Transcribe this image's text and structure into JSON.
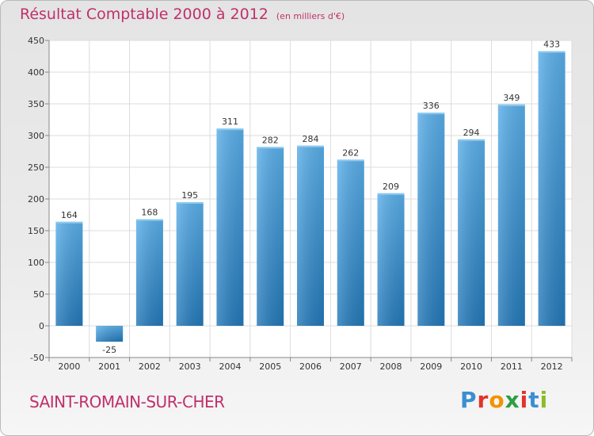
{
  "chart_data": {
    "type": "bar",
    "title": "Résultat Comptable 2000 à 2012",
    "subtitle": "(en milliers d'€)",
    "categories": [
      "2000",
      "2001",
      "2002",
      "2003",
      "2004",
      "2005",
      "2006",
      "2007",
      "2008",
      "2009",
      "2010",
      "2011",
      "2012"
    ],
    "values": [
      164,
      -25,
      168,
      195,
      311,
      282,
      284,
      262,
      209,
      336,
      294,
      349,
      433
    ],
    "ylim": [
      -50,
      450
    ],
    "yticks": [
      -50,
      0,
      50,
      100,
      150,
      200,
      250,
      300,
      350,
      400,
      450
    ],
    "xlabel": "",
    "ylabel": "",
    "grid": true,
    "bar_color": "#3d93d6"
  },
  "footer": {
    "city": "SAINT-ROMAIN-SUR-CHER",
    "logo_letters": [
      "P",
      "r",
      "o",
      "x",
      "i",
      "t",
      "i"
    ],
    "logo_colors": [
      "#3b8fd0",
      "#e4312b",
      "#f39200",
      "#2f9e44",
      "#e4312b",
      "#3b8fd0",
      "#8dbb25"
    ]
  }
}
